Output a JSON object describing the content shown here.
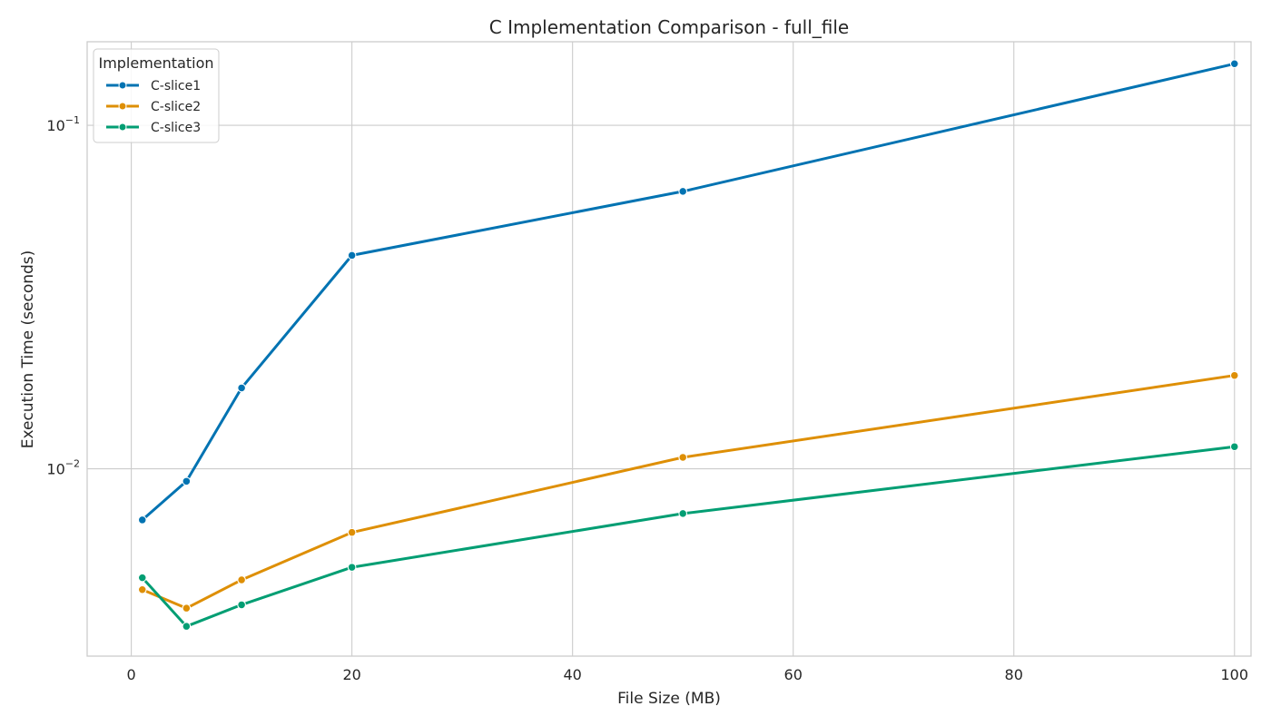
{
  "chart_data": {
    "type": "line",
    "title": "C Implementation Comparison - full_file",
    "xlabel": "File Size (MB)",
    "ylabel": "Execution Time (seconds)",
    "xlim": [
      -4,
      101.5
    ],
    "ylim": [
      0.00285,
      0.175
    ],
    "yscale": "log",
    "grid": true,
    "x_ticks": [
      0,
      20,
      40,
      60,
      80,
      100
    ],
    "y_ticks": [
      {
        "value": 0.01,
        "base": "10",
        "exp": "−2"
      },
      {
        "value": 0.1,
        "base": "10",
        "exp": "−1"
      }
    ],
    "legend": {
      "title": "Implementation",
      "placement": "top-left"
    },
    "x": [
      1,
      5,
      10,
      20,
      50,
      100
    ],
    "series": [
      {
        "name": "C-slice1",
        "color": "#0173b2",
        "values": [
          0.0071,
          0.0092,
          0.0172,
          0.0418,
          0.0642,
          0.151
        ]
      },
      {
        "name": "C-slice2",
        "color": "#de8f05",
        "values": [
          0.00445,
          0.00393,
          0.00475,
          0.00653,
          0.0108,
          0.0187
        ]
      },
      {
        "name": "C-slice3",
        "color": "#029e73",
        "values": [
          0.00482,
          0.00348,
          0.00402,
          0.00517,
          0.00741,
          0.0116
        ]
      }
    ]
  }
}
